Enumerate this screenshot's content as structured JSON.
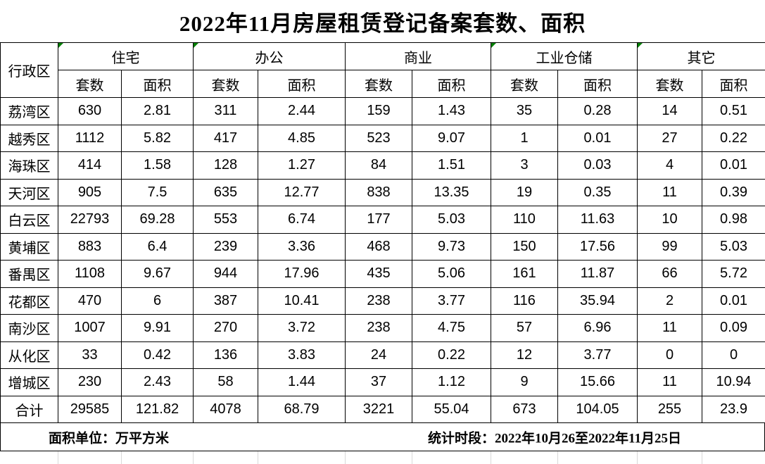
{
  "page": {
    "title": "2022年11月房屋租赁登记备案套数、面积"
  },
  "table": {
    "corner_header": "行政区",
    "groups": [
      {
        "label": "住宅",
        "error_marker": true
      },
      {
        "label": "办公",
        "error_marker": true
      },
      {
        "label": "商业",
        "error_marker": false
      },
      {
        "label": "工业仓储",
        "error_marker": true
      },
      {
        "label": "其它",
        "error_marker": true
      }
    ],
    "sub_headers": {
      "count": "套数",
      "area": "面积"
    },
    "rows": [
      {
        "district": "荔湾区",
        "values": [
          "630",
          "2.81",
          "311",
          "2.44",
          "159",
          "1.43",
          "35",
          "0.28",
          "14",
          "0.51"
        ]
      },
      {
        "district": "越秀区",
        "values": [
          "1112",
          "5.82",
          "417",
          "4.85",
          "523",
          "9.07",
          "1",
          "0.01",
          "27",
          "0.22"
        ]
      },
      {
        "district": "海珠区",
        "values": [
          "414",
          "1.58",
          "128",
          "1.27",
          "84",
          "1.51",
          "3",
          "0.03",
          "4",
          "0.01"
        ]
      },
      {
        "district": "天河区",
        "values": [
          "905",
          "7.5",
          "635",
          "12.77",
          "838",
          "13.35",
          "19",
          "0.35",
          "11",
          "0.39"
        ]
      },
      {
        "district": "白云区",
        "values": [
          "22793",
          "69.28",
          "553",
          "6.74",
          "177",
          "5.03",
          "110",
          "11.63",
          "10",
          "0.98"
        ]
      },
      {
        "district": "黄埔区",
        "values": [
          "883",
          "6.4",
          "239",
          "3.36",
          "468",
          "9.73",
          "150",
          "17.56",
          "99",
          "5.03"
        ]
      },
      {
        "district": "番禺区",
        "values": [
          "1108",
          "9.67",
          "944",
          "17.96",
          "435",
          "5.06",
          "161",
          "11.87",
          "66",
          "5.72"
        ]
      },
      {
        "district": "花都区",
        "values": [
          "470",
          "6",
          "387",
          "10.41",
          "238",
          "3.77",
          "116",
          "35.94",
          "2",
          "0.01"
        ]
      },
      {
        "district": "南沙区",
        "values": [
          "1007",
          "9.91",
          "270",
          "3.72",
          "238",
          "4.75",
          "57",
          "6.96",
          "11",
          "0.09"
        ]
      },
      {
        "district": "从化区",
        "values": [
          "33",
          "0.42",
          "136",
          "3.83",
          "24",
          "0.22",
          "12",
          "3.77",
          "0",
          "0"
        ]
      },
      {
        "district": "增城区",
        "values": [
          "230",
          "2.43",
          "58",
          "1.44",
          "37",
          "1.12",
          "9",
          "15.66",
          "11",
          "10.94"
        ]
      },
      {
        "district": "合计",
        "values": [
          "29585",
          "121.82",
          "4078",
          "68.79",
          "3221",
          "55.04",
          "673",
          "104.05",
          "255",
          "23.9"
        ]
      }
    ]
  },
  "footer": {
    "unit_note": "面积单位：万平方米",
    "period_note": "统计时段：2022年10月26至2022年11月25日"
  },
  "colors": {
    "text": "#000000",
    "border": "#000000",
    "background": "#ffffff",
    "error_marker_green": "#008000",
    "sheet_gridline": "#d9d9d9"
  }
}
